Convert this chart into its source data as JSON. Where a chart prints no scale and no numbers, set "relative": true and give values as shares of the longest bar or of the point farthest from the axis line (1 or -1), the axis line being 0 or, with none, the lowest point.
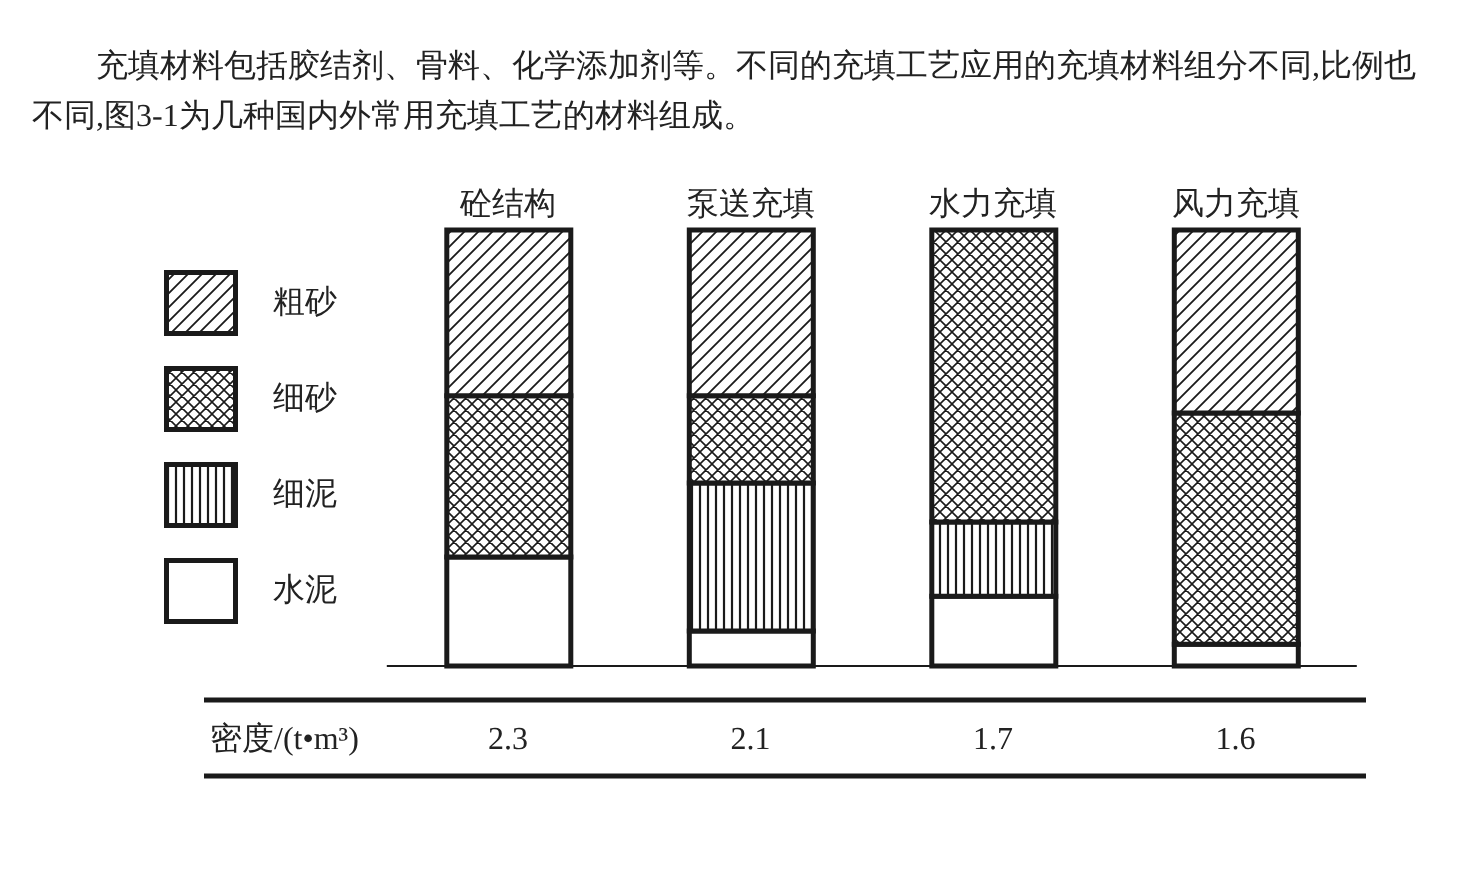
{
  "chart_data": {
    "type": "bar",
    "title": "充填材料包括胶结剂、骨料、化学添加剂等。不同的充填工艺应用的充填材料组分不同,比例也不同,图3-1为几种国内外常用充填工艺的材料组成。",
    "categories": [
      "砼结构",
      "泵送充填",
      "水力充填",
      "风力充填"
    ],
    "relative": true,
    "stacked": true,
    "legend": "left",
    "series": [
      {
        "name": "水泥",
        "color": "#ffffff",
        "values": [
          0.25,
          0.08,
          0.16,
          0.05
        ]
      },
      {
        "name": "细泥",
        "color": "#1a1a1a",
        "values": [
          null,
          0.34,
          0.17,
          null
        ]
      },
      {
        "name": "细砂",
        "color": "#1a1a1a",
        "values": [
          0.37,
          0.2,
          0.67,
          0.53
        ]
      },
      {
        "name": "粗砂",
        "color": "#1a1a1a",
        "values": [
          0.38,
          0.38,
          null,
          0.42
        ]
      }
    ],
    "annotations": [
      "密度/(t•m³)",
      "2.3",
      "2.1",
      "1.7",
      "1.6"
    ]
  }
}
